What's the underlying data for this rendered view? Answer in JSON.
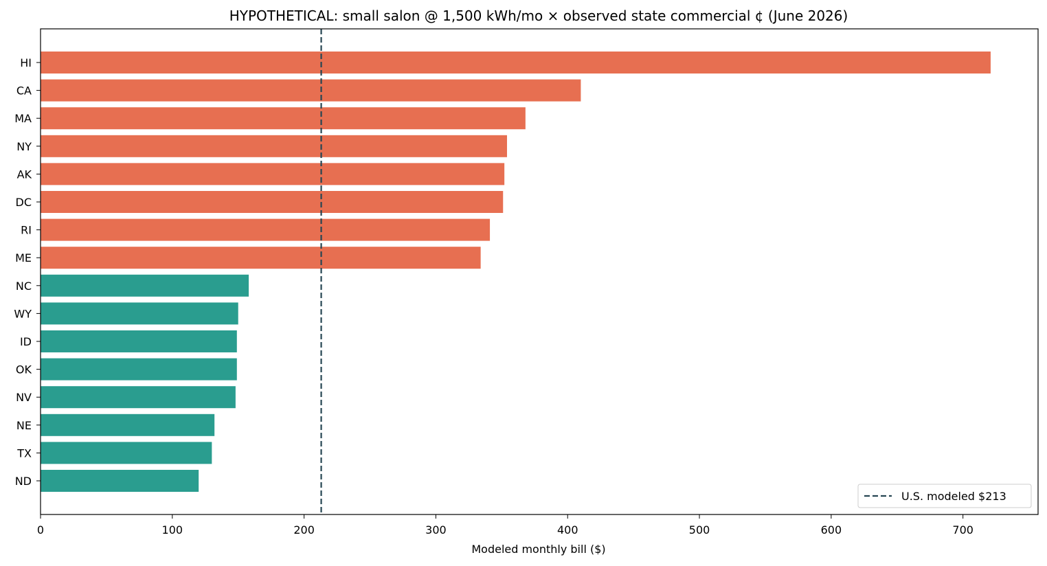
{
  "chart_data": {
    "type": "bar",
    "orientation": "horizontal",
    "title": "HYPOTHETICAL: small salon @ 1,500 kWh/mo × observed state commercial ¢ (June 2026)",
    "xlabel": "Modeled monthly bill ($)",
    "ylabel": "",
    "xlim": [
      0,
      757
    ],
    "xticks": [
      0,
      100,
      200,
      300,
      400,
      500,
      600,
      700
    ],
    "categories": [
      "HI",
      "CA",
      "MA",
      "NY",
      "AK",
      "DC",
      "RI",
      "ME",
      "NC",
      "WY",
      "ID",
      "OK",
      "NV",
      "NE",
      "TX",
      "ND"
    ],
    "values": [
      721,
      410,
      368,
      354,
      352,
      351,
      341,
      334,
      158,
      150,
      149,
      149,
      148,
      132,
      130,
      120
    ],
    "bar_colors": [
      "#e76f51",
      "#e76f51",
      "#e76f51",
      "#e76f51",
      "#e76f51",
      "#e76f51",
      "#e76f51",
      "#e76f51",
      "#2a9d8f",
      "#2a9d8f",
      "#2a9d8f",
      "#2a9d8f",
      "#2a9d8f",
      "#2a9d8f",
      "#2a9d8f",
      "#2a9d8f"
    ],
    "reference_line": {
      "value": 213,
      "label": "U.S. modeled $213",
      "color": "#264653",
      "style": "dashed"
    },
    "legend_position": "lower-right",
    "grid": false
  }
}
